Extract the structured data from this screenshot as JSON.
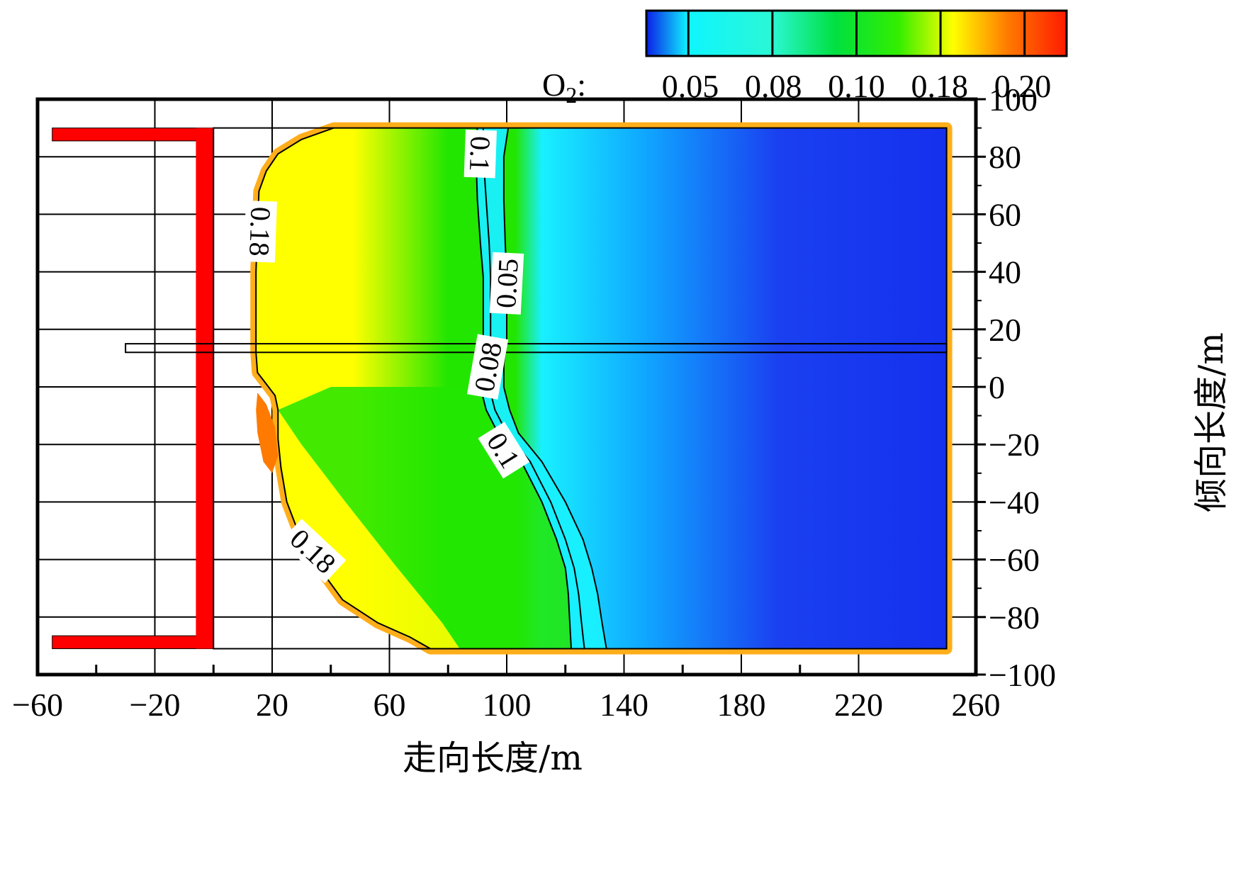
{
  "chart_data": {
    "type": "heatmap",
    "title": "",
    "xlabel": "走向长度/m",
    "ylabel": "倾向长度/m",
    "xlim": [
      -60,
      260
    ],
    "ylim": [
      -100,
      100
    ],
    "x_ticks": [
      -60,
      -20,
      20,
      60,
      100,
      140,
      180,
      220,
      260
    ],
    "y_ticks": [
      100,
      80,
      60,
      40,
      20,
      0,
      -20,
      -40,
      -60,
      -80,
      -100
    ],
    "grid": true,
    "colorbar": {
      "label_main": "O",
      "label_sub": "2",
      "label_suffix": ":",
      "placement": "top-right",
      "tick_labels": [
        "0.05",
        "0.08",
        "0.10",
        "0.18",
        "0.20"
      ],
      "stops": [
        {
          "frac": 0.0,
          "color": "#0b1fe6"
        },
        {
          "frac": 0.1,
          "color": "#0ff5ff"
        },
        {
          "frac": 0.3,
          "color": "#2bf7d4"
        },
        {
          "frac": 0.45,
          "color": "#00e040"
        },
        {
          "frac": 0.6,
          "color": "#33ee00"
        },
        {
          "frac": 0.73,
          "color": "#ffff00"
        },
        {
          "frac": 0.86,
          "color": "#ff7a00"
        },
        {
          "frac": 1.0,
          "color": "#ff1a00"
        }
      ],
      "dividers_frac": [
        0.1,
        0.3,
        0.5,
        0.7,
        0.9
      ]
    },
    "colors": {
      "blue": "#1a34f0",
      "cyan": "#18f0ff",
      "green": "#22e600",
      "yellow": "#ffff00",
      "orange": "#ffae1a",
      "red": "#ff0000"
    },
    "contours": [
      {
        "level": "0.18",
        "label": "0.18",
        "points": [
          [
            41,
            90
          ],
          [
            30,
            86
          ],
          [
            22,
            81
          ],
          [
            18,
            75
          ],
          [
            15.5,
            68
          ],
          [
            15,
            55
          ],
          [
            14.5,
            40
          ],
          [
            14.5,
            25
          ],
          [
            14.5,
            12
          ],
          [
            15,
            5
          ],
          [
            18,
            1
          ],
          [
            21,
            -3
          ],
          [
            22,
            -8
          ],
          [
            22,
            -18
          ],
          [
            23,
            -28
          ],
          [
            25,
            -40
          ],
          [
            28,
            -48
          ],
          [
            34,
            -60
          ],
          [
            44,
            -74
          ],
          [
            56,
            -82
          ],
          [
            67,
            -87
          ],
          [
            74,
            -91
          ]
        ]
      },
      {
        "level": "0.1",
        "label": "0.1",
        "points": [
          [
            90,
            90
          ],
          [
            89.5,
            80
          ],
          [
            90,
            65
          ],
          [
            91,
            50
          ],
          [
            92,
            38
          ],
          [
            92,
            28
          ],
          [
            92,
            16
          ],
          [
            91,
            8
          ],
          [
            91,
            0
          ],
          [
            93,
            -8
          ],
          [
            97,
            -16
          ],
          [
            105,
            -26
          ],
          [
            112,
            -40
          ],
          [
            117,
            -53
          ],
          [
            120,
            -63
          ],
          [
            121,
            -72
          ],
          [
            121.5,
            -82
          ],
          [
            122,
            -91
          ]
        ]
      },
      {
        "level": "0.08",
        "label": "0.08",
        "points": [
          [
            92,
            90
          ],
          [
            92,
            80
          ],
          [
            93,
            65
          ],
          [
            94,
            50
          ],
          [
            94.5,
            38
          ],
          [
            94.5,
            28
          ],
          [
            94.5,
            16
          ],
          [
            94,
            8
          ],
          [
            94,
            0
          ],
          [
            96,
            -8
          ],
          [
            100,
            -16
          ],
          [
            108,
            -26
          ],
          [
            115,
            -40
          ],
          [
            120,
            -53
          ],
          [
            123,
            -63
          ],
          [
            124.5,
            -72
          ],
          [
            125.5,
            -82
          ],
          [
            126.5,
            -91
          ]
        ]
      },
      {
        "level": "0.05",
        "label": "0.05",
        "points": [
          [
            100.5,
            90
          ],
          [
            99,
            80
          ],
          [
            99,
            65
          ],
          [
            99.5,
            50
          ],
          [
            100,
            38
          ],
          [
            100,
            28
          ],
          [
            100,
            16
          ],
          [
            99,
            8
          ],
          [
            99,
            0
          ],
          [
            101,
            -8
          ],
          [
            104,
            -16
          ],
          [
            112,
            -26
          ],
          [
            120,
            -40
          ],
          [
            126,
            -53
          ],
          [
            129,
            -63
          ],
          [
            131,
            -72
          ],
          [
            132.5,
            -82
          ],
          [
            134,
            -91
          ]
        ]
      }
    ],
    "contour_labels": [
      {
        "text": "0.1",
        "x": 91,
        "y": 81,
        "rotate": 92
      },
      {
        "text": "0.18",
        "x": 16,
        "y": 54,
        "rotate": 92
      },
      {
        "text": "0.05",
        "x": 100,
        "y": 36,
        "rotate": -87
      },
      {
        "text": "0.08",
        "x": 93.5,
        "y": 7,
        "rotate": -80
      },
      {
        "text": "0.1",
        "x": 99,
        "y": -22,
        "rotate": 58
      },
      {
        "text": "0.18",
        "x": 34,
        "y": -57,
        "rotate": 43
      }
    ],
    "working_face": {
      "type": "U-frame",
      "x_left": -55,
      "x_inner": -6,
      "x_outer": 0,
      "y_top": 90,
      "y_bottom": -91,
      "arm": 4.5
    },
    "roadway": {
      "x_start": -30,
      "x_end": 250,
      "y_low": 12,
      "y_high": 15
    },
    "domain": {
      "x_start": 0,
      "x_end": 250,
      "y_top": 90,
      "y_bottom": -91
    }
  }
}
